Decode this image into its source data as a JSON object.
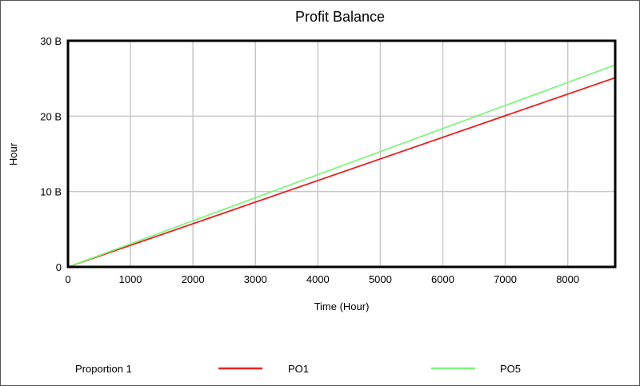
{
  "chart_data": {
    "type": "line",
    "title": "Profit Balance",
    "xlabel": "Time (Hour)",
    "ylabel": "Hour",
    "xlim": [
      0,
      8760
    ],
    "ylim": [
      0,
      30000000000
    ],
    "x_ticks": [
      0,
      1000,
      2000,
      3000,
      4000,
      5000,
      6000,
      7000,
      8000
    ],
    "x_tick_labels": [
      "0",
      "1000",
      "2000",
      "3000",
      "4000",
      "5000",
      "6000",
      "7000",
      "8000"
    ],
    "y_ticks": [
      0,
      10000000000,
      20000000000,
      30000000000
    ],
    "y_tick_labels": [
      "0",
      "10 B",
      "20 B",
      "30 B"
    ],
    "grid": true,
    "legend_position": "bottom",
    "legend_title": "Proportion 1",
    "series": [
      {
        "name": "PO1",
        "color": "#e8201e",
        "x": [
          0,
          8760
        ],
        "y": [
          0,
          25100000000
        ]
      },
      {
        "name": "PO5",
        "color": "#7ff57a",
        "x": [
          0,
          8760
        ],
        "y": [
          0,
          26800000000
        ]
      }
    ]
  }
}
